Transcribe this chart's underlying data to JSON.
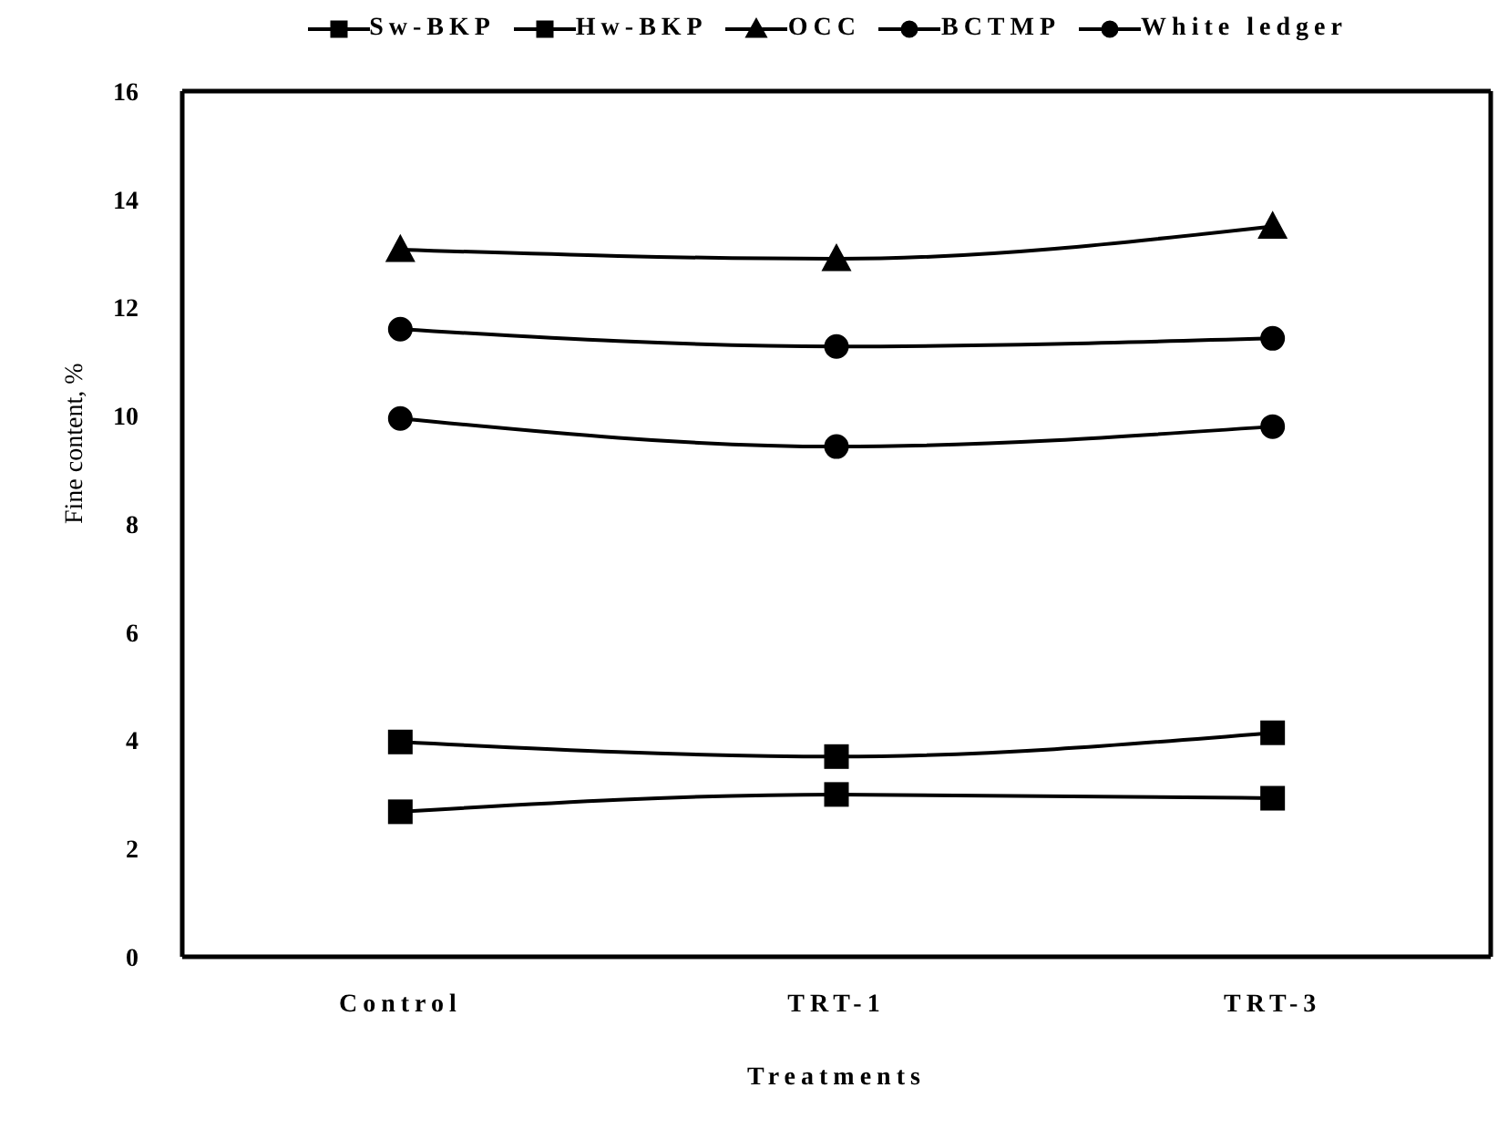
{
  "chart_data": {
    "type": "line",
    "xlabel": "Treatments",
    "ylabel": "Fine content, %",
    "categories": [
      "Control",
      "TRT-1",
      "TRT-3"
    ],
    "series": [
      {
        "name": "Sw-BKP",
        "color": "#000000",
        "marker": "square",
        "values": [
          3.97,
          3.7,
          4.14
        ]
      },
      {
        "name": "Hw-BKP",
        "color": "#000000",
        "marker": "square",
        "values": [
          2.68,
          3.0,
          2.93
        ]
      },
      {
        "name": "OCC",
        "color": "#000000",
        "marker": "triangle",
        "values": [
          13.07,
          12.9,
          13.5
        ]
      },
      {
        "name": "BCTMP",
        "color": "#000000",
        "marker": "circle",
        "values": [
          9.95,
          9.43,
          9.8
        ]
      },
      {
        "name": "White ledger",
        "color": "#000000",
        "marker": "circle",
        "values": [
          11.6,
          11.28,
          11.43
        ]
      }
    ],
    "ylim": [
      0,
      16
    ],
    "yticks": [
      0,
      2,
      4,
      6,
      8,
      10,
      12,
      14,
      16
    ],
    "grid": false,
    "legend": "top",
    "line_style": "solid"
  }
}
